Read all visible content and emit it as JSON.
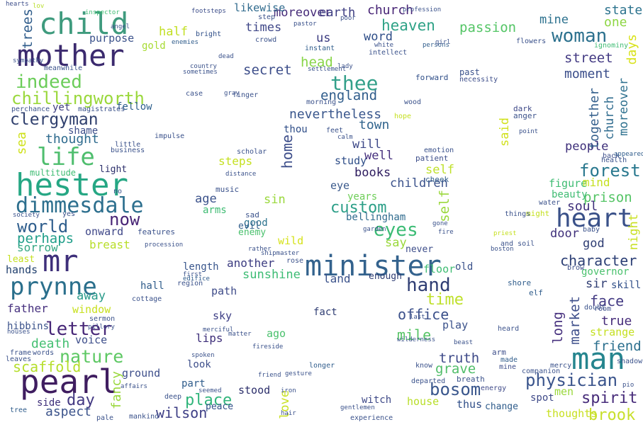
{
  "cloud": {
    "words": [
      {
        "text": "child",
        "color": "#3f9b7e"
      },
      {
        "text": "mother",
        "color": "#3b2a6e"
      },
      {
        "text": "indeed",
        "color": "#6ccd5a"
      },
      {
        "text": "chillingworth",
        "color": "#9ad83c"
      },
      {
        "text": "clergyman",
        "color": "#30406e"
      },
      {
        "text": "life",
        "color": "#4fbe6e"
      },
      {
        "text": "hester",
        "color": "#26a784"
      },
      {
        "text": "dimmesdale",
        "color": "#2d6f8e"
      },
      {
        "text": "world",
        "color": "#2f5e8d"
      },
      {
        "text": "perhaps",
        "color": "#1f9e89"
      },
      {
        "text": "sorrow",
        "color": "#35a783"
      },
      {
        "text": "mr",
        "color": "#3e2f7a"
      },
      {
        "text": "prynne",
        "color": "#2a6f8c"
      },
      {
        "text": "letter",
        "color": "#482878"
      },
      {
        "text": "nature",
        "color": "#5dc863"
      },
      {
        "text": "death",
        "color": "#43bf71"
      },
      {
        "text": "scaffold",
        "color": "#b5de2b"
      },
      {
        "text": "pearl",
        "color": "#3f1d60"
      },
      {
        "text": "day",
        "color": "#433982"
      },
      {
        "text": "aspect",
        "color": "#3b538b"
      },
      {
        "text": "minister",
        "color": "#33628d"
      },
      {
        "text": "heart",
        "color": "#3a5189"
      },
      {
        "text": "man",
        "color": "#25858e"
      },
      {
        "text": "woman",
        "color": "#2c718e"
      },
      {
        "text": "forest",
        "color": "#29788e"
      },
      {
        "text": "thee",
        "color": "#33a08a"
      },
      {
        "text": "hand",
        "color": "#2f3d73"
      },
      {
        "text": "eyes",
        "color": "#3cbc75"
      },
      {
        "text": "custom",
        "color": "#2c9f88"
      },
      {
        "text": "physician",
        "color": "#3a548c"
      },
      {
        "text": "now",
        "color": "#482576"
      },
      {
        "text": "time",
        "color": "#bfe02a"
      },
      {
        "text": "bosom",
        "color": "#39568c"
      },
      {
        "text": "mile",
        "color": "#57c466"
      },
      {
        "text": "place",
        "color": "#31b57b"
      },
      {
        "text": "wilson",
        "color": "#3d3e85"
      },
      {
        "text": "brook",
        "color": "#c8df2b"
      },
      {
        "text": "spirit",
        "color": "#472c7a"
      },
      {
        "text": "friend",
        "color": "#2b6f8e"
      },
      {
        "text": "truth",
        "color": "#3e4a89"
      },
      {
        "text": "grave",
        "color": "#50bd69"
      },
      {
        "text": "office",
        "color": "#3b508a"
      },
      {
        "text": "heaven",
        "color": "#2ea286"
      },
      {
        "text": "passion",
        "color": "#54c566"
      },
      {
        "text": "street",
        "color": "#433a83"
      },
      {
        "text": "moment",
        "color": "#3a4d8a"
      },
      {
        "text": "character",
        "color": "#2c3f75"
      },
      {
        "text": "prison",
        "color": "#54c465"
      },
      {
        "text": "soul",
        "color": "#3e2f7a"
      },
      {
        "text": "face",
        "color": "#433a83"
      },
      {
        "text": "true",
        "color": "#472d7b"
      },
      {
        "text": "england",
        "color": "#2f5c8b"
      },
      {
        "text": "nevertheless",
        "color": "#39568c"
      },
      {
        "text": "people",
        "color": "#3e2f7a"
      },
      {
        "text": "church",
        "color": "#2e6b8e"
      },
      {
        "text": "moreover",
        "color": "#2d708e"
      },
      {
        "text": "likewise",
        "color": "#482576"
      },
      {
        "text": "times",
        "color": "#452a78"
      },
      {
        "text": "secret",
        "color": "#2f6a8d"
      },
      {
        "text": "head",
        "color": "#3f4788"
      },
      {
        "text": "us",
        "color": "#3d4e8a"
      },
      {
        "text": "earth",
        "color": "#88d548"
      },
      {
        "text": "state",
        "color": "#3b3b80"
      },
      {
        "text": "one",
        "color": "#2c738e"
      },
      {
        "text": "mine",
        "color": "#8ed644"
      },
      {
        "text": "days",
        "color": "#2c718e"
      },
      {
        "text": "together",
        "color": "#d8e219"
      },
      {
        "text": "thought",
        "color": "#35608d"
      },
      {
        "text": "shame",
        "color": "#2e6b8e"
      },
      {
        "text": "infant",
        "color": "#3d4e8a"
      },
      {
        "text": "speak",
        "color": "#cfe11c"
      },
      {
        "text": "sea",
        "color": "#31648d"
      },
      {
        "text": "town",
        "color": "#3e4988"
      },
      {
        "text": "will",
        "color": "#3d4e8a"
      },
      {
        "text": "home",
        "color": "#46307e"
      },
      {
        "text": "well",
        "color": "#2d1b5e"
      },
      {
        "text": "books",
        "color": "#2f4e88"
      },
      {
        "text": "study",
        "color": "#3b5a8c"
      },
      {
        "text": "eye",
        "color": "#3b528b"
      },
      {
        "text": "children",
        "color": "#6ece58"
      },
      {
        "text": "years",
        "color": "#bfe02a"
      },
      {
        "text": "self",
        "color": "#9ad83c"
      },
      {
        "text": "said",
        "color": "#d1e11c"
      },
      {
        "text": "age",
        "color": "#3b528b"
      },
      {
        "text": "sin",
        "color": "#9ad83c"
      },
      {
        "text": "arms",
        "color": "#3fbc73"
      },
      {
        "text": "steps",
        "color": "#c5e021"
      },
      {
        "text": "bellingham",
        "color": "#2f6b8e"
      },
      {
        "text": "say",
        "color": "#9ad83c"
      },
      {
        "text": "another",
        "color": "#3b3b80"
      },
      {
        "text": "sunshine",
        "color": "#3dbc74"
      },
      {
        "text": "land",
        "color": "#3b528b"
      },
      {
        "text": "good",
        "color": "#2c738e"
      },
      {
        "text": "wild",
        "color": "#d6e21a"
      },
      {
        "text": "evil",
        "color": "#33608d"
      },
      {
        "text": "enemy",
        "color": "#4ac16d"
      },
      {
        "text": "light",
        "color": "#2c2f6b"
      },
      {
        "text": "half",
        "color": "#c2df23"
      },
      {
        "text": "gold",
        "color": "#a8db34"
      },
      {
        "text": "purpose",
        "color": "#3b528b"
      },
      {
        "text": "fellow",
        "color": "#2d5f8c"
      },
      {
        "text": "yet",
        "color": "#3b3b80"
      },
      {
        "text": "breast",
        "color": "#b8de29"
      },
      {
        "text": "onward",
        "color": "#3f4788"
      },
      {
        "text": "hands",
        "color": "#21406e"
      },
      {
        "text": "father",
        "color": "#46307e"
      },
      {
        "text": "window",
        "color": "#c8e020"
      },
      {
        "text": "away",
        "color": "#2a9b8a"
      },
      {
        "text": "hall",
        "color": "#2f5c8b"
      },
      {
        "text": "path",
        "color": "#3e4b89"
      },
      {
        "text": "length",
        "color": "#39568c"
      },
      {
        "text": "ground",
        "color": "#3d4e8a"
      },
      {
        "text": "look",
        "color": "#3d4e8a"
      },
      {
        "text": "part",
        "color": "#2f5c8b"
      },
      {
        "text": "lips",
        "color": "#3e2f7a"
      },
      {
        "text": "sky",
        "color": "#3d3e85"
      },
      {
        "text": "stood",
        "color": "#2c2f6b"
      },
      {
        "text": "peace",
        "color": "#2f4e88"
      },
      {
        "text": "house",
        "color": "#b8de29"
      },
      {
        "text": "witch",
        "color": "#3e4988"
      },
      {
        "text": "thus",
        "color": "#2f4e88"
      },
      {
        "text": "change",
        "color": "#2f5c8b"
      },
      {
        "text": "men",
        "color": "#9ad83c"
      },
      {
        "text": "spot",
        "color": "#3e4988"
      },
      {
        "text": "thoughts",
        "color": "#c8e020"
      },
      {
        "text": "governor",
        "color": "#4ac16d"
      },
      {
        "text": "sir",
        "color": "#2f3d73"
      },
      {
        "text": "skill",
        "color": "#2f4e88"
      },
      {
        "text": "strange",
        "color": "#c5e021"
      },
      {
        "text": "market",
        "color": "#3d4e8a"
      },
      {
        "text": "long",
        "color": "#46307e"
      },
      {
        "text": "god",
        "color": "#2f3d73"
      },
      {
        "text": "door",
        "color": "#3e2f7a"
      },
      {
        "text": "figure",
        "color": "#3fbc73"
      },
      {
        "text": "mind",
        "color": "#c5e021"
      },
      {
        "text": "beauty",
        "color": "#3fbc73"
      },
      {
        "text": "night",
        "color": "#c8e020"
      },
      {
        "text": "fact",
        "color": "#2f3d73"
      },
      {
        "text": "ago",
        "color": "#4ac16d"
      },
      {
        "text": "play",
        "color": "#3b528b"
      },
      {
        "text": "enough",
        "color": "#2f3d73"
      },
      {
        "text": "old",
        "color": "#3b528b"
      },
      {
        "text": "floor",
        "color": "#3fbc73"
      },
      {
        "text": "never",
        "color": "#3d4e8a"
      },
      {
        "text": "pain",
        "color": "#c8e020"
      },
      {
        "text": "love",
        "color": "#3b528b"
      },
      {
        "text": "hibbins",
        "color": "#c5e021"
      },
      {
        "text": "least",
        "color": "#3d4e8a"
      },
      {
        "text": "voice",
        "color": "#9ad83c"
      },
      {
        "text": "hour",
        "color": "#3e2f7a"
      },
      {
        "text": "side",
        "color": "#2f5c8b"
      },
      {
        "text": "hither",
        "color": "#2f4e88"
      },
      {
        "text": "fancy",
        "color": "#3d4e8a"
      },
      {
        "text": "name",
        "color": "#d6e21a"
      },
      {
        "text": "trees",
        "color": "#4ac16d"
      },
      {
        "text": "word",
        "color": "#3b528b"
      }
    ]
  }
}
